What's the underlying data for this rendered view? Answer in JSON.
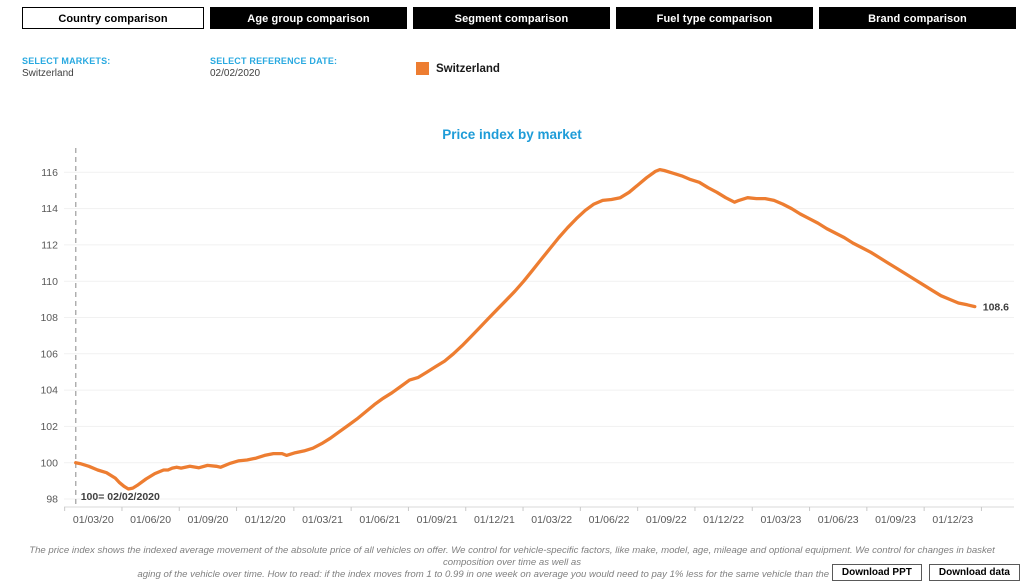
{
  "tabs": [
    {
      "label": "Country comparison",
      "active": true
    },
    {
      "label": "Age group comparison",
      "active": false
    },
    {
      "label": "Segment comparison",
      "active": false
    },
    {
      "label": "Fuel type comparison",
      "active": false
    },
    {
      "label": "Brand comparison",
      "active": false
    }
  ],
  "controls": {
    "markets_label": "SELECT MARKETS:",
    "markets_value": "Switzerland",
    "date_label": "SELECT REFERENCE DATE:",
    "date_value": "02/02/2020"
  },
  "legend": {
    "name": "Switzerland",
    "color": "#ED7D31"
  },
  "chart_data": {
    "type": "line",
    "title": "Price index by market",
    "grid": "horizontal",
    "ylim": [
      97.5,
      117.3
    ],
    "y_ticks": [
      98,
      100,
      102,
      104,
      106,
      108,
      110,
      112,
      114,
      116
    ],
    "x_tick_labels": [
      "01/03/20",
      "01/06/20",
      "01/09/20",
      "01/12/20",
      "01/03/21",
      "01/06/21",
      "01/09/21",
      "01/12/21",
      "01/03/22",
      "01/06/22",
      "01/09/22",
      "01/12/22",
      "01/03/23",
      "01/06/23",
      "01/09/23",
      "01/12/23"
    ],
    "reference_line": {
      "date": "2020-02-02",
      "label": "100= 02/02/2020"
    },
    "end_label": "108.6",
    "series": [
      {
        "name": "Switzerland",
        "color": "#ED7D31",
        "points": [
          [
            "2020-02-02",
            100.0
          ],
          [
            "2020-02-09",
            99.95
          ],
          [
            "2020-02-23",
            99.8
          ],
          [
            "2020-03-08",
            99.6
          ],
          [
            "2020-03-22",
            99.45
          ],
          [
            "2020-04-05",
            99.15
          ],
          [
            "2020-04-12",
            98.9
          ],
          [
            "2020-04-19",
            98.7
          ],
          [
            "2020-04-26",
            98.55
          ],
          [
            "2020-05-03",
            98.6
          ],
          [
            "2020-05-10",
            98.75
          ],
          [
            "2020-05-24",
            99.1
          ],
          [
            "2020-06-07",
            99.4
          ],
          [
            "2020-06-21",
            99.6
          ],
          [
            "2020-06-28",
            99.6
          ],
          [
            "2020-07-05",
            99.7
          ],
          [
            "2020-07-12",
            99.75
          ],
          [
            "2020-07-19",
            99.7
          ],
          [
            "2020-08-02",
            99.8
          ],
          [
            "2020-08-16",
            99.72
          ],
          [
            "2020-08-30",
            99.85
          ],
          [
            "2020-09-13",
            99.8
          ],
          [
            "2020-09-20",
            99.75
          ],
          [
            "2020-10-04",
            99.95
          ],
          [
            "2020-10-18",
            100.1
          ],
          [
            "2020-11-01",
            100.15
          ],
          [
            "2020-11-15",
            100.25
          ],
          [
            "2020-11-29",
            100.4
          ],
          [
            "2020-12-13",
            100.5
          ],
          [
            "2020-12-27",
            100.5
          ],
          [
            "2021-01-03",
            100.4
          ],
          [
            "2021-01-17",
            100.55
          ],
          [
            "2021-01-31",
            100.65
          ],
          [
            "2021-02-14",
            100.8
          ],
          [
            "2021-02-28",
            101.05
          ],
          [
            "2021-03-14",
            101.35
          ],
          [
            "2021-03-28",
            101.7
          ],
          [
            "2021-04-11",
            102.05
          ],
          [
            "2021-04-25",
            102.4
          ],
          [
            "2021-05-09",
            102.8
          ],
          [
            "2021-05-23",
            103.2
          ],
          [
            "2021-06-06",
            103.55
          ],
          [
            "2021-06-20",
            103.85
          ],
          [
            "2021-07-04",
            104.2
          ],
          [
            "2021-07-18",
            104.55
          ],
          [
            "2021-08-01",
            104.7
          ],
          [
            "2021-08-15",
            105.0
          ],
          [
            "2021-08-29",
            105.3
          ],
          [
            "2021-09-12",
            105.6
          ],
          [
            "2021-09-26",
            106.0
          ],
          [
            "2021-10-10",
            106.45
          ],
          [
            "2021-10-24",
            106.95
          ],
          [
            "2021-11-07",
            107.45
          ],
          [
            "2021-11-21",
            107.95
          ],
          [
            "2021-12-05",
            108.45
          ],
          [
            "2021-12-19",
            108.95
          ],
          [
            "2022-01-02",
            109.45
          ],
          [
            "2022-01-16",
            110.0
          ],
          [
            "2022-01-30",
            110.6
          ],
          [
            "2022-02-13",
            111.2
          ],
          [
            "2022-02-27",
            111.8
          ],
          [
            "2022-03-13",
            112.4
          ],
          [
            "2022-03-27",
            112.95
          ],
          [
            "2022-04-10",
            113.45
          ],
          [
            "2022-04-24",
            113.9
          ],
          [
            "2022-05-08",
            114.25
          ],
          [
            "2022-05-22",
            114.45
          ],
          [
            "2022-06-05",
            114.5
          ],
          [
            "2022-06-19",
            114.6
          ],
          [
            "2022-07-03",
            114.9
          ],
          [
            "2022-07-17",
            115.3
          ],
          [
            "2022-07-31",
            115.7
          ],
          [
            "2022-08-14",
            116.05
          ],
          [
            "2022-08-21",
            116.15
          ],
          [
            "2022-08-28",
            116.1
          ],
          [
            "2022-09-11",
            115.95
          ],
          [
            "2022-09-25",
            115.8
          ],
          [
            "2022-10-09",
            115.6
          ],
          [
            "2022-10-23",
            115.45
          ],
          [
            "2022-11-06",
            115.15
          ],
          [
            "2022-11-20",
            114.9
          ],
          [
            "2022-12-04",
            114.6
          ],
          [
            "2022-12-18",
            114.35
          ],
          [
            "2022-12-25",
            114.45
          ],
          [
            "2023-01-08",
            114.6
          ],
          [
            "2023-01-22",
            114.55
          ],
          [
            "2023-02-05",
            114.55
          ],
          [
            "2023-02-19",
            114.45
          ],
          [
            "2023-03-05",
            114.25
          ],
          [
            "2023-03-19",
            114.0
          ],
          [
            "2023-04-02",
            113.7
          ],
          [
            "2023-04-16",
            113.45
          ],
          [
            "2023-04-30",
            113.2
          ],
          [
            "2023-05-14",
            112.9
          ],
          [
            "2023-05-28",
            112.65
          ],
          [
            "2023-06-11",
            112.4
          ],
          [
            "2023-06-25",
            112.1
          ],
          [
            "2023-07-09",
            111.85
          ],
          [
            "2023-07-23",
            111.6
          ],
          [
            "2023-08-06",
            111.3
          ],
          [
            "2023-08-20",
            111.0
          ],
          [
            "2023-09-03",
            110.7
          ],
          [
            "2023-09-17",
            110.4
          ],
          [
            "2023-10-01",
            110.1
          ],
          [
            "2023-10-15",
            109.8
          ],
          [
            "2023-10-29",
            109.5
          ],
          [
            "2023-11-12",
            109.2
          ],
          [
            "2023-11-26",
            109.0
          ],
          [
            "2023-12-10",
            108.8
          ],
          [
            "2023-12-24",
            108.7
          ],
          [
            "2024-01-05",
            108.6
          ]
        ]
      }
    ]
  },
  "footer": {
    "disclaimer_line1": "The price index shows the indexed average movement of the absolute price of all vehicles on offer. We control for vehicle-specific factors, like make, model, age, mileage and optional equipment. We control for changes in basket composition over time as well as",
    "disclaimer_line2": "aging of the vehicle over time. How to read: if the index moves from 1 to 0.99 in one week on average you would need to pay 1% less for the same vehicle than the week before.",
    "download_ppt_label": "Download PPT",
    "download_data_label": "Download data"
  },
  "colors": {
    "accent_blue": "#29A9E0",
    "title_blue": "#1E9CD8",
    "line_orange": "#ED7D31",
    "axis_text": "#595959",
    "annotation_text": "#404040",
    "gridline": "#f1f1f1",
    "tab_black": "#000000"
  }
}
